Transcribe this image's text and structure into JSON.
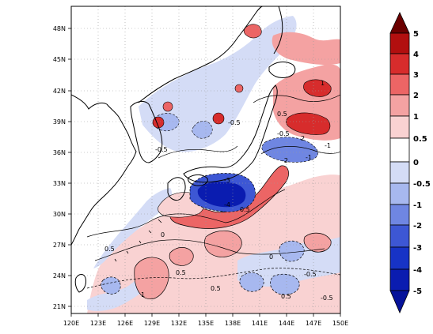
{
  "map": {
    "x_ticks": [
      "120E",
      "123E",
      "126E",
      "129E",
      "132E",
      "135E",
      "138E",
      "141E",
      "144E",
      "147E",
      "150E"
    ],
    "y_ticks": [
      "21N",
      "24N",
      "27N",
      "30N",
      "33N",
      "36N",
      "39N",
      "42N",
      "45N",
      "48N"
    ],
    "lon_range": [
      120,
      150
    ],
    "lat_range": [
      20,
      50
    ],
    "gridlines": "dotted"
  },
  "colorbar": {
    "labels": [
      "5",
      "4",
      "3",
      "2",
      "1",
      "0.5",
      "0",
      "-0.5",
      "-1",
      "-2",
      "-3",
      "-4",
      "-5"
    ],
    "colors": [
      "#6b0000",
      "#b20f0f",
      "#d72c2c",
      "#ec6565",
      "#f4a2a2",
      "#f9d2d2",
      "#ffffff",
      "#d4dcf6",
      "#a7b8ef",
      "#6f86e2",
      "#3d57d4",
      "#1733c6",
      "#0a1cb0"
    ]
  },
  "contour_labels": [
    "-3",
    "-4",
    "0.5",
    "-0.5",
    "0",
    "1",
    "-1",
    "2",
    "-2",
    "0.5",
    "-0.5",
    "0.5",
    "0.5",
    "1",
    "0.5",
    "-0.5",
    "0.5",
    "-0.5",
    "-0.5",
    "0",
    "-1"
  ]
}
